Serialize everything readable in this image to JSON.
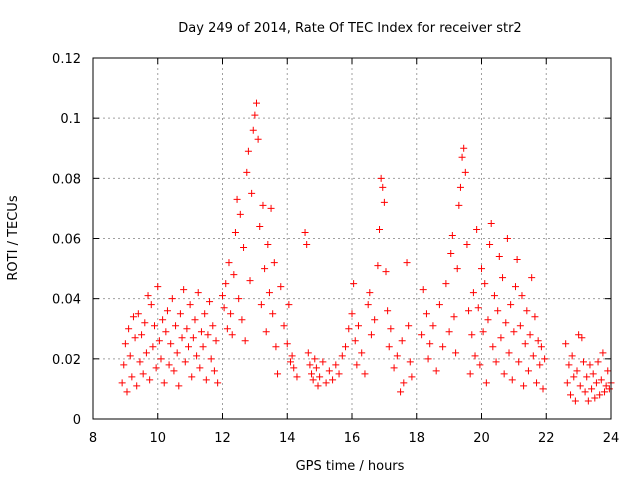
{
  "chart_data": {
    "type": "scatter",
    "title": "Day 249 of 2014, Rate Of TEC Index for receiver str2",
    "xlabel": "GPS time / hours",
    "ylabel": "ROTI / TECUs",
    "xlim": [
      8,
      24
    ],
    "ylim": [
      0,
      0.12
    ],
    "xticks": [
      8,
      10,
      12,
      14,
      16,
      18,
      20,
      22,
      24
    ],
    "yticks": [
      0,
      0.02,
      0.04,
      0.06,
      0.08,
      0.1,
      0.12
    ],
    "ytick_labels": [
      "0",
      "0.02",
      "0.04",
      "0.06",
      "0.08",
      "0.1",
      "0.12"
    ],
    "grid": true,
    "marker": "+",
    "color": "#ff0000",
    "series": [
      {
        "name": "ROTI",
        "points": [
          [
            8.9,
            0.012
          ],
          [
            8.95,
            0.018
          ],
          [
            9.0,
            0.025
          ],
          [
            9.05,
            0.009
          ],
          [
            9.1,
            0.03
          ],
          [
            9.15,
            0.021
          ],
          [
            9.2,
            0.014
          ],
          [
            9.25,
            0.034
          ],
          [
            9.3,
            0.027
          ],
          [
            9.35,
            0.011
          ],
          [
            9.4,
            0.035
          ],
          [
            9.45,
            0.019
          ],
          [
            9.5,
            0.028
          ],
          [
            9.55,
            0.015
          ],
          [
            9.6,
            0.032
          ],
          [
            9.65,
            0.022
          ],
          [
            9.7,
            0.041
          ],
          [
            9.75,
            0.013
          ],
          [
            9.8,
            0.038
          ],
          [
            9.85,
            0.024
          ],
          [
            9.9,
            0.031
          ],
          [
            9.95,
            0.017
          ],
          [
            10.0,
            0.044
          ],
          [
            10.05,
            0.026
          ],
          [
            10.1,
            0.02
          ],
          [
            10.15,
            0.033
          ],
          [
            10.2,
            0.012
          ],
          [
            10.25,
            0.029
          ],
          [
            10.3,
            0.036
          ],
          [
            10.35,
            0.018
          ],
          [
            10.4,
            0.025
          ],
          [
            10.45,
            0.04
          ],
          [
            10.5,
            0.016
          ],
          [
            10.55,
            0.031
          ],
          [
            10.6,
            0.022
          ],
          [
            10.65,
            0.011
          ],
          [
            10.7,
            0.035
          ],
          [
            10.75,
            0.027
          ],
          [
            10.8,
            0.043
          ],
          [
            10.85,
            0.019
          ],
          [
            10.9,
            0.03
          ],
          [
            10.95,
            0.024
          ],
          [
            11.0,
            0.038
          ],
          [
            11.05,
            0.014
          ],
          [
            11.1,
            0.027
          ],
          [
            11.15,
            0.033
          ],
          [
            11.2,
            0.021
          ],
          [
            11.25,
            0.042
          ],
          [
            11.3,
            0.017
          ],
          [
            11.35,
            0.029
          ],
          [
            11.4,
            0.024
          ],
          [
            11.45,
            0.035
          ],
          [
            11.5,
            0.013
          ],
          [
            11.55,
            0.028
          ],
          [
            11.6,
            0.039
          ],
          [
            11.65,
            0.02
          ],
          [
            11.7,
            0.031
          ],
          [
            11.75,
            0.016
          ],
          [
            11.8,
            0.026
          ],
          [
            11.85,
            0.012
          ],
          [
            12.0,
            0.041
          ],
          [
            12.05,
            0.037
          ],
          [
            12.1,
            0.045
          ],
          [
            12.15,
            0.03
          ],
          [
            12.2,
            0.052
          ],
          [
            12.25,
            0.035
          ],
          [
            12.3,
            0.028
          ],
          [
            12.35,
            0.048
          ],
          [
            12.4,
            0.062
          ],
          [
            12.45,
            0.073
          ],
          [
            12.5,
            0.04
          ],
          [
            12.55,
            0.068
          ],
          [
            12.6,
            0.033
          ],
          [
            12.65,
            0.057
          ],
          [
            12.7,
            0.026
          ],
          [
            12.75,
            0.082
          ],
          [
            12.8,
            0.089
          ],
          [
            12.85,
            0.046
          ],
          [
            12.9,
            0.075
          ],
          [
            12.95,
            0.096
          ],
          [
            13.0,
            0.101
          ],
          [
            13.05,
            0.105
          ],
          [
            13.1,
            0.093
          ],
          [
            13.15,
            0.064
          ],
          [
            13.2,
            0.038
          ],
          [
            13.25,
            0.071
          ],
          [
            13.3,
            0.05
          ],
          [
            13.35,
            0.029
          ],
          [
            13.4,
            0.058
          ],
          [
            13.45,
            0.042
          ],
          [
            13.5,
            0.07
          ],
          [
            13.55,
            0.035
          ],
          [
            13.6,
            0.052
          ],
          [
            13.65,
            0.024
          ],
          [
            13.7,
            0.015
          ],
          [
            13.8,
            0.044
          ],
          [
            13.9,
            0.031
          ],
          [
            14.0,
            0.025
          ],
          [
            14.05,
            0.038
          ],
          [
            14.1,
            0.019
          ],
          [
            14.55,
            0.062
          ],
          [
            14.6,
            0.058
          ],
          [
            14.65,
            0.022
          ],
          [
            14.7,
            0.018
          ],
          [
            14.75,
            0.015
          ],
          [
            14.8,
            0.013
          ],
          [
            14.85,
            0.02
          ],
          [
            14.9,
            0.017
          ],
          [
            14.95,
            0.011
          ],
          [
            15.0,
            0.014
          ],
          [
            15.1,
            0.019
          ],
          [
            15.2,
            0.012
          ],
          [
            15.3,
            0.016
          ],
          [
            15.4,
            0.013
          ],
          [
            15.5,
            0.018
          ],
          [
            15.6,
            0.015
          ],
          [
            15.7,
            0.021
          ],
          [
            15.8,
            0.024
          ],
          [
            15.9,
            0.03
          ],
          [
            16.0,
            0.035
          ],
          [
            16.05,
            0.045
          ],
          [
            16.1,
            0.026
          ],
          [
            16.15,
            0.018
          ],
          [
            16.2,
            0.031
          ],
          [
            16.3,
            0.022
          ],
          [
            16.4,
            0.015
          ],
          [
            16.5,
            0.038
          ],
          [
            16.55,
            0.042
          ],
          [
            16.6,
            0.028
          ],
          [
            16.7,
            0.033
          ],
          [
            16.8,
            0.051
          ],
          [
            16.85,
            0.063
          ],
          [
            16.9,
            0.08
          ],
          [
            16.95,
            0.077
          ],
          [
            17.0,
            0.072
          ],
          [
            17.05,
            0.049
          ],
          [
            17.1,
            0.036
          ],
          [
            17.15,
            0.024
          ],
          [
            17.2,
            0.03
          ],
          [
            17.3,
            0.017
          ],
          [
            17.4,
            0.021
          ],
          [
            17.5,
            0.009
          ],
          [
            17.55,
            0.026
          ],
          [
            17.6,
            0.012
          ],
          [
            17.7,
            0.052
          ],
          [
            17.75,
            0.031
          ],
          [
            17.8,
            0.019
          ],
          [
            17.85,
            0.014
          ],
          [
            18.15,
            0.028
          ],
          [
            18.2,
            0.043
          ],
          [
            18.3,
            0.035
          ],
          [
            18.35,
            0.02
          ],
          [
            18.4,
            0.025
          ],
          [
            18.5,
            0.031
          ],
          [
            18.6,
            0.016
          ],
          [
            18.7,
            0.038
          ],
          [
            18.8,
            0.024
          ],
          [
            18.9,
            0.045
          ],
          [
            19.0,
            0.029
          ],
          [
            19.05,
            0.055
          ],
          [
            19.1,
            0.061
          ],
          [
            19.15,
            0.034
          ],
          [
            19.2,
            0.022
          ],
          [
            19.25,
            0.05
          ],
          [
            19.3,
            0.071
          ],
          [
            19.35,
            0.077
          ],
          [
            19.4,
            0.087
          ],
          [
            19.45,
            0.09
          ],
          [
            19.5,
            0.082
          ],
          [
            19.55,
            0.058
          ],
          [
            19.6,
            0.036
          ],
          [
            19.65,
            0.015
          ],
          [
            19.7,
            0.028
          ],
          [
            19.75,
            0.042
          ],
          [
            19.8,
            0.021
          ],
          [
            19.85,
            0.063
          ],
          [
            19.9,
            0.037
          ],
          [
            19.95,
            0.018
          ],
          [
            20.0,
            0.05
          ],
          [
            20.05,
            0.029
          ],
          [
            20.1,
            0.045
          ],
          [
            20.15,
            0.012
          ],
          [
            20.2,
            0.033
          ],
          [
            20.25,
            0.058
          ],
          [
            20.3,
            0.065
          ],
          [
            20.35,
            0.024
          ],
          [
            20.4,
            0.041
          ],
          [
            20.45,
            0.019
          ],
          [
            20.5,
            0.036
          ],
          [
            20.55,
            0.054
          ],
          [
            20.6,
            0.027
          ],
          [
            20.65,
            0.047
          ],
          [
            20.7,
            0.015
          ],
          [
            20.75,
            0.032
          ],
          [
            20.8,
            0.06
          ],
          [
            20.85,
            0.022
          ],
          [
            20.9,
            0.038
          ],
          [
            20.95,
            0.013
          ],
          [
            21.0,
            0.029
          ],
          [
            21.05,
            0.044
          ],
          [
            21.1,
            0.053
          ],
          [
            21.15,
            0.019
          ],
          [
            21.2,
            0.031
          ],
          [
            21.25,
            0.041
          ],
          [
            21.3,
            0.011
          ],
          [
            21.35,
            0.025
          ],
          [
            21.4,
            0.036
          ],
          [
            21.45,
            0.016
          ],
          [
            21.5,
            0.028
          ],
          [
            21.55,
            0.047
          ],
          [
            21.6,
            0.021
          ],
          [
            21.65,
            0.034
          ],
          [
            21.7,
            0.012
          ],
          [
            21.75,
            0.026
          ],
          [
            21.8,
            0.018
          ],
          [
            21.85,
            0.024
          ],
          [
            21.9,
            0.01
          ],
          [
            21.95,
            0.02
          ],
          [
            22.6,
            0.025
          ],
          [
            22.65,
            0.012
          ],
          [
            22.7,
            0.018
          ],
          [
            22.75,
            0.008
          ],
          [
            22.8,
            0.021
          ],
          [
            22.85,
            0.014
          ],
          [
            22.9,
            0.006
          ],
          [
            22.95,
            0.016
          ],
          [
            23.0,
            0.028
          ],
          [
            23.05,
            0.011
          ],
          [
            23.1,
            0.027
          ],
          [
            23.15,
            0.019
          ],
          [
            23.2,
            0.009
          ],
          [
            23.25,
            0.014
          ],
          [
            23.3,
            0.006
          ],
          [
            23.35,
            0.018
          ],
          [
            23.4,
            0.01
          ],
          [
            23.45,
            0.015
          ],
          [
            23.5,
            0.007
          ],
          [
            23.55,
            0.012
          ],
          [
            23.6,
            0.019
          ],
          [
            23.65,
            0.008
          ],
          [
            23.7,
            0.013
          ],
          [
            23.75,
            0.022
          ],
          [
            23.8,
            0.009
          ],
          [
            23.85,
            0.011
          ],
          [
            23.9,
            0.016
          ],
          [
            23.95,
            0.01
          ],
          [
            24.0,
            0.012
          ],
          [
            14.15,
            0.021
          ],
          [
            14.2,
            0.017
          ],
          [
            14.3,
            0.014
          ]
        ]
      }
    ]
  }
}
